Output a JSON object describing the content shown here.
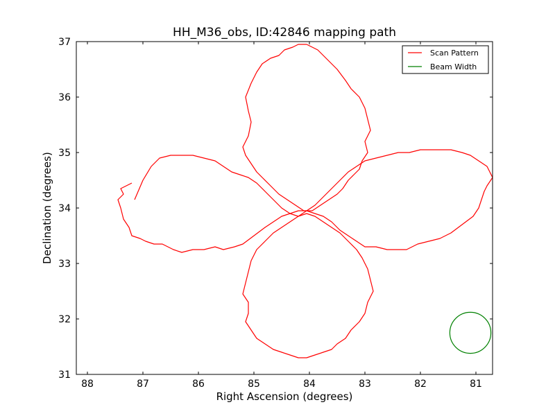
{
  "chart_data": {
    "type": "line",
    "title": "HH_M36_obs, ID:42846 mapping path",
    "xlabel": "Right Ascension (degrees)",
    "ylabel": "Declination (degrees)",
    "xlim": [
      88.2,
      80.7
    ],
    "ylim": [
      31,
      37
    ],
    "x_ticks": [
      "88",
      "87",
      "86",
      "85",
      "84",
      "83",
      "82",
      "81"
    ],
    "y_ticks": [
      "31",
      "32",
      "33",
      "34",
      "35",
      "36",
      "37"
    ],
    "grid": false,
    "legend_position": "top-right",
    "series": [
      {
        "name": "Scan Pattern",
        "color": "#ff0000",
        "style": "line",
        "x": [
          87.2,
          87.4,
          87.35,
          87.45,
          87.4,
          87.35,
          87.25,
          87.2,
          87.05,
          86.95,
          86.8,
          86.65,
          86.45,
          86.3,
          86.1,
          85.9,
          85.7,
          85.55,
          85.35,
          85.2,
          85.0,
          84.8,
          84.65,
          84.5,
          84.35,
          84.2,
          84.05,
          83.9,
          83.75,
          83.6,
          83.45,
          83.3,
          83.15,
          83.0,
          82.8,
          82.6,
          82.4,
          82.25,
          82.05,
          81.85,
          81.65,
          81.45,
          81.25,
          81.05,
          80.95,
          80.9,
          80.85,
          80.8,
          80.7,
          80.8,
          80.95,
          81.1,
          81.25,
          81.45,
          81.6,
          81.8,
          82.0,
          82.2,
          82.4,
          82.6,
          82.8,
          83.0,
          83.15,
          83.3,
          83.45,
          83.6,
          83.75,
          83.9,
          84.05,
          84.2,
          84.35,
          84.5,
          84.65,
          84.8,
          84.95,
          85.1,
          85.25,
          85.4,
          85.55,
          85.7,
          85.9,
          86.1,
          86.3,
          86.5,
          86.7,
          86.85,
          87.0,
          87.15
        ],
        "y": [
          34.45,
          34.35,
          34.25,
          34.15,
          34.0,
          33.8,
          33.65,
          33.5,
          33.45,
          33.4,
          33.35,
          33.35,
          33.25,
          33.2,
          33.25,
          33.25,
          33.3,
          33.25,
          33.3,
          33.35,
          33.5,
          33.65,
          33.75,
          33.85,
          33.9,
          33.95,
          33.95,
          33.9,
          33.85,
          33.75,
          33.6,
          33.5,
          33.4,
          33.3,
          33.3,
          33.25,
          33.25,
          33.25,
          33.35,
          33.4,
          33.45,
          33.55,
          33.7,
          33.85,
          34.0,
          34.15,
          34.3,
          34.4,
          34.55,
          34.75,
          34.85,
          34.95,
          35.0,
          35.05,
          35.05,
          35.05,
          35.05,
          35.0,
          35.0,
          34.95,
          34.9,
          34.85,
          34.75,
          34.65,
          34.5,
          34.35,
          34.2,
          34.05,
          33.95,
          33.85,
          33.9,
          34.0,
          34.15,
          34.3,
          34.45,
          34.55,
          34.6,
          34.65,
          34.75,
          34.85,
          34.9,
          34.95,
          34.95,
          34.95,
          34.9,
          34.75,
          34.5,
          34.15
        ]
      },
      {
        "name": "Scan Pattern",
        "color": "#ff0000",
        "style": "line",
        "x": [
          84.05,
          83.95,
          83.85,
          83.75,
          83.65,
          83.5,
          83.35,
          83.25,
          83.1,
          83.0,
          82.95,
          82.9,
          83.0,
          82.95,
          83.05,
          83.1,
          83.2,
          83.3,
          83.4,
          83.5,
          83.65,
          83.8,
          83.95,
          84.1,
          84.25,
          84.4,
          84.55,
          84.7,
          84.85,
          84.95,
          85.05,
          85.15,
          85.2,
          85.1,
          85.05,
          85.1,
          85.15,
          85.05,
          84.95,
          84.85,
          84.7,
          84.55,
          84.45,
          84.3,
          84.2,
          84.05
        ],
        "y": [
          36.95,
          36.9,
          36.85,
          36.75,
          36.65,
          36.5,
          36.3,
          36.15,
          36.0,
          35.8,
          35.6,
          35.4,
          35.2,
          35.0,
          34.85,
          34.7,
          34.6,
          34.5,
          34.35,
          34.25,
          34.15,
          34.05,
          33.95,
          33.95,
          34.05,
          34.15,
          34.25,
          34.4,
          34.55,
          34.65,
          34.8,
          34.95,
          35.1,
          35.3,
          35.55,
          35.75,
          36.0,
          36.25,
          36.45,
          36.6,
          36.7,
          36.75,
          36.85,
          36.9,
          36.95,
          36.95
        ]
      },
      {
        "name": "Scan Pattern",
        "color": "#ff0000",
        "style": "line",
        "x": [
          84.05,
          83.9,
          83.75,
          83.6,
          83.5,
          83.35,
          83.25,
          83.1,
          83.0,
          82.95,
          82.85,
          82.9,
          82.95,
          83.05,
          83.15,
          83.3,
          83.45,
          83.6,
          83.75,
          83.9,
          84.05,
          84.2,
          84.35,
          84.5,
          84.65,
          84.8,
          84.95,
          85.05,
          85.1,
          85.15,
          85.2,
          85.1,
          85.1,
          85.15,
          85.05,
          84.95,
          84.8,
          84.65,
          84.5,
          84.35,
          84.2,
          84.05
        ],
        "y": [
          31.3,
          31.35,
          31.4,
          31.45,
          31.55,
          31.65,
          31.8,
          31.95,
          32.1,
          32.3,
          32.5,
          32.7,
          32.9,
          33.1,
          33.25,
          33.4,
          33.55,
          33.65,
          33.75,
          33.85,
          33.9,
          33.85,
          33.75,
          33.65,
          33.55,
          33.4,
          33.25,
          33.05,
          32.85,
          32.65,
          32.45,
          32.3,
          32.1,
          31.95,
          31.8,
          31.65,
          31.55,
          31.45,
          31.4,
          31.35,
          31.3,
          31.3
        ]
      }
    ],
    "beam": {
      "name": "Beam Width",
      "color": "#008000",
      "center_x": 81.1,
      "center_y": 31.75,
      "radius": 0.37
    }
  }
}
